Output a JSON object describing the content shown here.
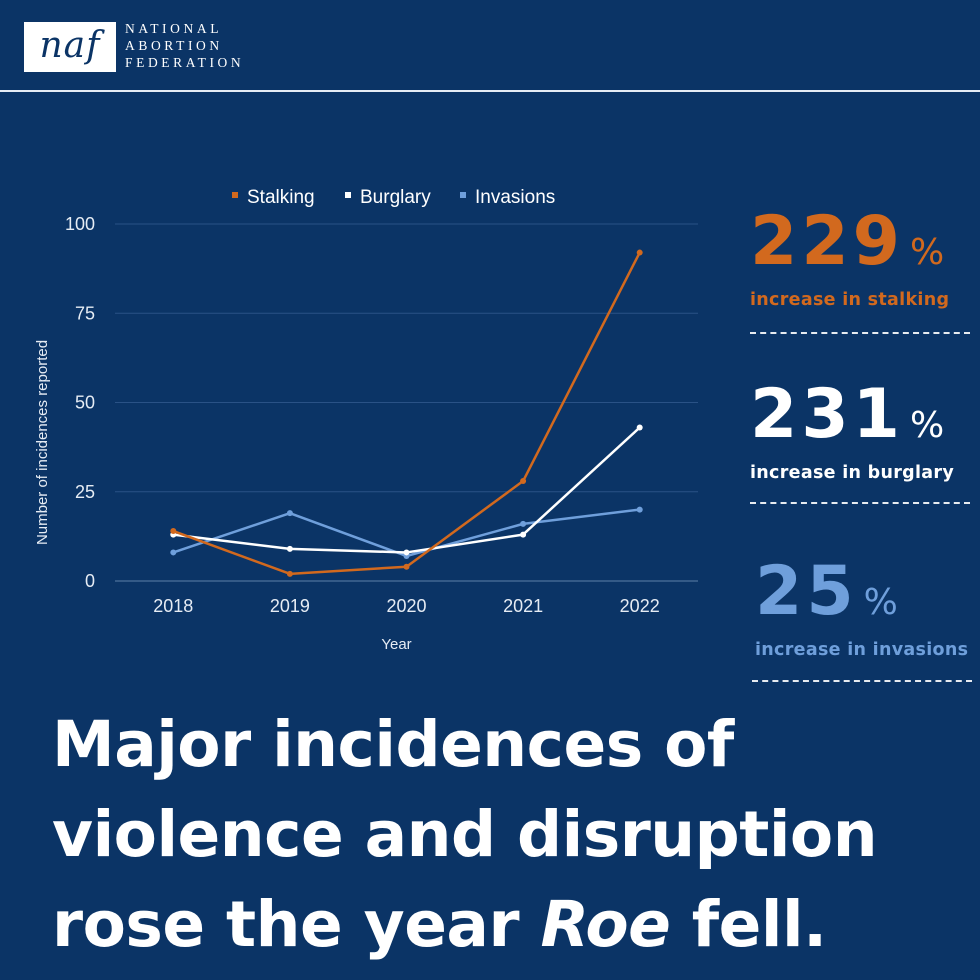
{
  "header": {
    "logo_text": "naf",
    "org_lines": [
      "NATIONAL",
      "ABORTION",
      "FEDERATION"
    ]
  },
  "chart_data": {
    "type": "line",
    "title": "",
    "xlabel": "Year",
    "ylabel": "Number of incidences reported",
    "categories": [
      "2018",
      "2019",
      "2020",
      "2021",
      "2022"
    ],
    "ylim": [
      0,
      100
    ],
    "yticks": [
      0,
      25,
      50,
      75,
      100
    ],
    "grid": true,
    "legend": "top-center",
    "series": [
      {
        "name": "Stalking",
        "values": [
          14,
          2,
          4,
          28,
          92
        ],
        "color": "#d2691e"
      },
      {
        "name": "Burglary",
        "values": [
          13,
          9,
          8,
          13,
          43
        ],
        "color": "#ffffff"
      },
      {
        "name": "Invasions",
        "values": [
          8,
          19,
          7,
          16,
          20
        ],
        "color": "#6f9fdb"
      }
    ]
  },
  "stats": [
    {
      "number": "229",
      "pct": "%",
      "label": "increase in stalking",
      "color": "#d2691e"
    },
    {
      "number": "231",
      "pct": "%",
      "label": "increase in burglary",
      "color": "#ffffff"
    },
    {
      "number": "25",
      "pct": "%",
      "label": "increase in invasions",
      "color": "#6f9fdb"
    }
  ],
  "headline": {
    "line1": "Major incidences of",
    "line2": "violence and disruption",
    "line3_pre": "rose the year ",
    "line3_em": "Roe",
    "line3_post": " fell."
  }
}
